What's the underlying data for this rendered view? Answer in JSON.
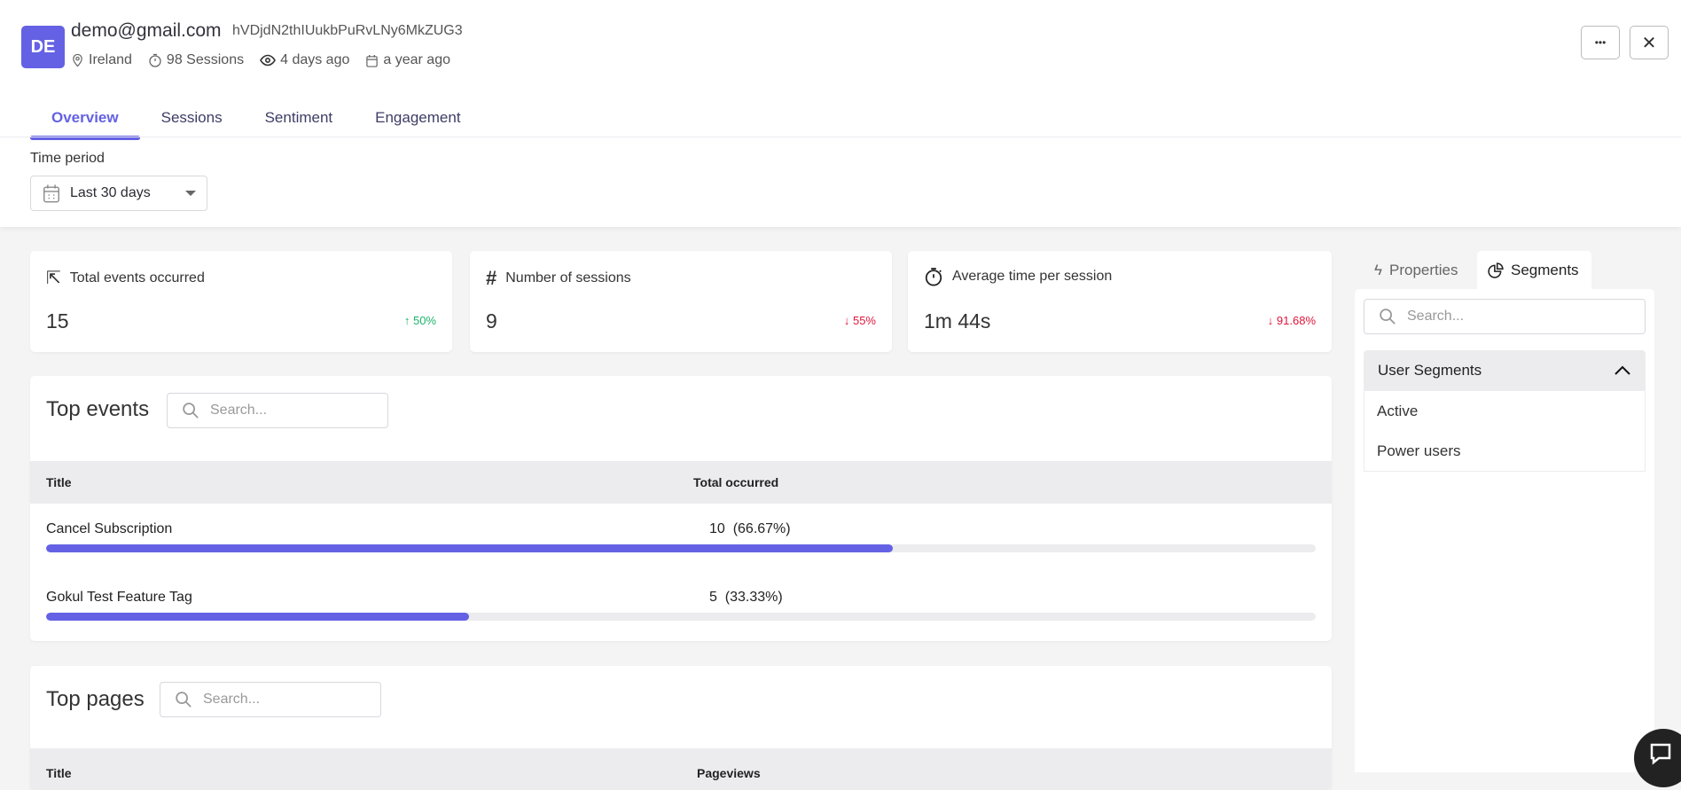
{
  "user": {
    "initials": "DE",
    "email": "demo@gmail.com",
    "id": "hVDjdN2thIUukbPuRvLNy6MkZUG3",
    "location": "Ireland",
    "sessions": "98 Sessions",
    "last_seen": "4 days ago",
    "first_seen": "a year ago"
  },
  "tabs": [
    {
      "label": "Overview",
      "active": true
    },
    {
      "label": "Sessions"
    },
    {
      "label": "Sentiment"
    },
    {
      "label": "Engagement"
    }
  ],
  "filter": {
    "label": "Time period",
    "value": "Last 30 days"
  },
  "actions": {
    "more": "•••",
    "close": "✕"
  },
  "stats": [
    {
      "label": "Total events occurred",
      "value": "15",
      "change": "50%",
      "direction": "up",
      "icon": "cursor-click-icon"
    },
    {
      "label": "Number of sessions",
      "value": "9",
      "change": "55%",
      "direction": "down",
      "icon": "hash-icon"
    },
    {
      "label": "Average time per session",
      "value": "1m 44s",
      "change": "91.68%",
      "direction": "down",
      "icon": "stopwatch-icon"
    }
  ],
  "top_events": {
    "title": "Top events",
    "search_placeholder": "Search...",
    "columns": [
      "Title",
      "Total occurred"
    ],
    "rows": [
      {
        "title": "Cancel Subscription",
        "count": "10",
        "pct": "(66.67%)",
        "fill": 66.67
      },
      {
        "title": "Gokul Test Feature Tag",
        "count": "5",
        "pct": "(33.33%)",
        "fill": 33.33
      }
    ]
  },
  "top_pages": {
    "title": "Top pages",
    "search_placeholder": "Search...",
    "columns": [
      "Title",
      "Pageviews"
    ]
  },
  "side": {
    "tabs": [
      "Properties",
      "Segments"
    ],
    "active_tab": "Segments",
    "search_placeholder": "Search...",
    "group": "User Segments",
    "items": [
      "Active",
      "Power users"
    ]
  },
  "colors": {
    "accent": "#6461e4",
    "up": "#1bb36a",
    "down": "#e0153c"
  }
}
